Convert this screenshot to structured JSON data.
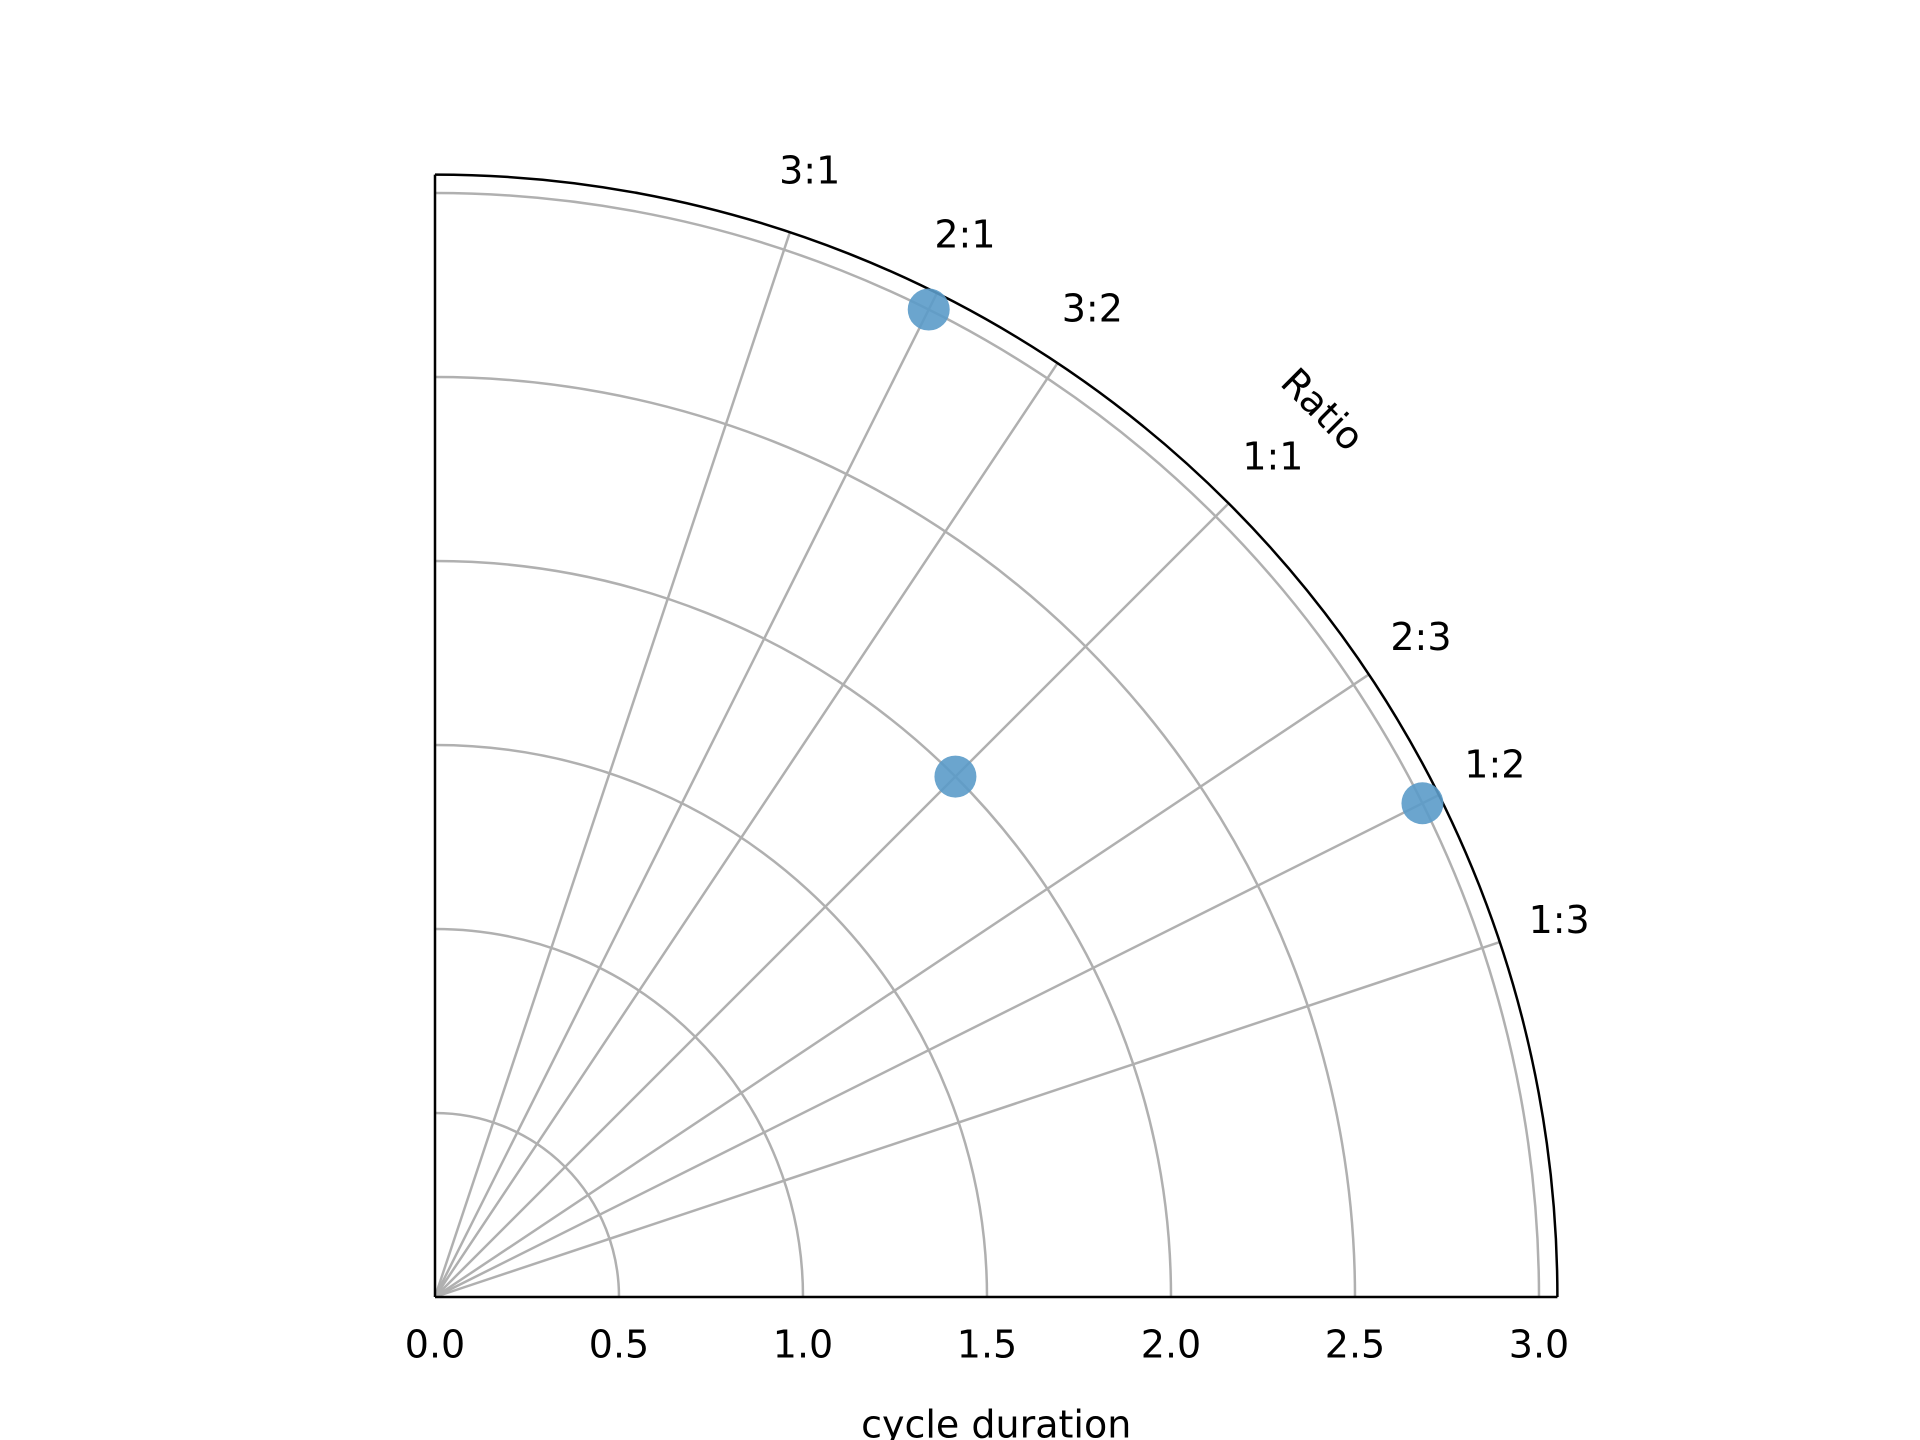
{
  "chart_data": {
    "type": "scatter",
    "projection": "polar-quarter",
    "title": "",
    "xlabel": "cycle duration",
    "angular_label": "Ratio",
    "r_max": 3.05,
    "r_ticks": [
      0.0,
      0.5,
      1.0,
      1.5,
      2.0,
      2.5,
      3.0
    ],
    "r_tick_labels": [
      "0.0",
      "0.5",
      "1.0",
      "1.5",
      "2.0",
      "2.5",
      "3.0"
    ],
    "ratio_lines": [
      {
        "label": "3:1",
        "ratio": [
          3,
          1
        ]
      },
      {
        "label": "2:1",
        "ratio": [
          2,
          1
        ]
      },
      {
        "label": "3:2",
        "ratio": [
          3,
          2
        ]
      },
      {
        "label": "1:1",
        "ratio": [
          1,
          1
        ]
      },
      {
        "label": "2:3",
        "ratio": [
          2,
          3
        ]
      },
      {
        "label": "1:2",
        "ratio": [
          1,
          2
        ]
      },
      {
        "label": "1:3",
        "ratio": [
          1,
          3
        ]
      }
    ],
    "points": [
      {
        "ratio": [
          2,
          1
        ],
        "r": 3.0
      },
      {
        "ratio": [
          1,
          1
        ],
        "r": 2.0
      },
      {
        "ratio": [
          1,
          2
        ],
        "r": 3.0
      }
    ],
    "grid": true,
    "colors": {
      "point": "#5b9bc9",
      "grid": "#b0b0b0",
      "frame": "#000000"
    }
  }
}
